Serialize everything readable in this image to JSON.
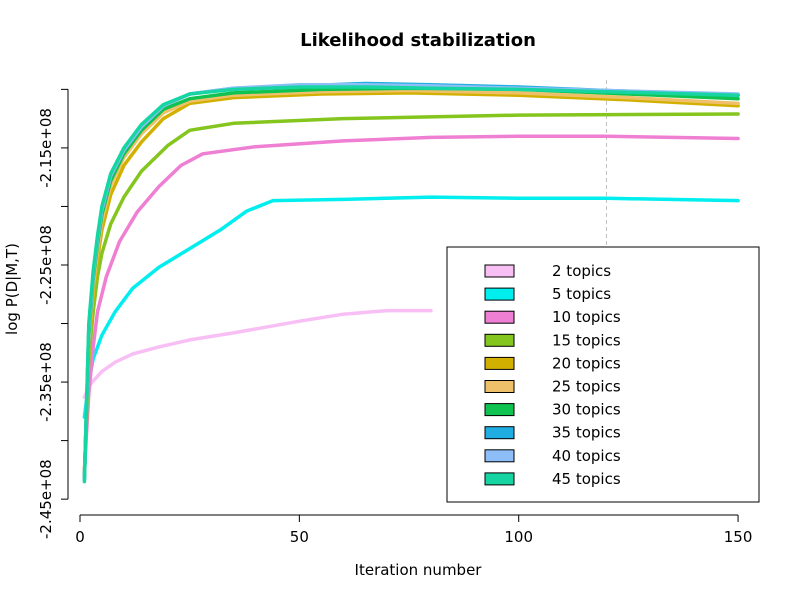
{
  "chart_data": {
    "type": "line",
    "title": "Likelihood stabilization",
    "xlabel": "Iteration number",
    "ylabel": "log P(D|M,T)",
    "xlim": [
      0,
      155
    ],
    "ylim": [
      -245500000.0,
      -209200000.0
    ],
    "x_ticks": [
      0,
      50,
      100,
      150
    ],
    "x_tick_labels": [
      "0",
      "50",
      "100",
      "150"
    ],
    "y_ticks": [
      -245000000.0,
      -240000000.0,
      -235000000.0,
      -230000000.0,
      -225000000.0,
      -220000000.0,
      -215000000.0,
      -210000000.0
    ],
    "y_tick_labels": [
      "-2.45e+08",
      "",
      "-2.35e+08",
      "",
      "-2.25e+08",
      "",
      "-2.15e+08",
      ""
    ],
    "vline": {
      "x": 120,
      "style": "dashed",
      "color": "#c0c0c0"
    },
    "legend_position": "bottom-right",
    "line_width": 3.5,
    "series": [
      {
        "name": "2 topics",
        "color": "#F8BFF5",
        "points": [
          [
            1,
            -236300000.0
          ],
          [
            2,
            -235400000.0
          ],
          [
            3,
            -234900000.0
          ],
          [
            5,
            -234100000.0
          ],
          [
            8,
            -233300000.0
          ],
          [
            12,
            -232600000.0
          ],
          [
            18,
            -232000000.0
          ],
          [
            25,
            -231400000.0
          ],
          [
            35,
            -230800000.0
          ],
          [
            50,
            -229800000.0
          ],
          [
            60,
            -229200000.0
          ],
          [
            70,
            -228900000.0
          ],
          [
            80,
            -228900000.0
          ]
        ]
      },
      {
        "name": "5 topics",
        "color": "#00EEEE",
        "points": [
          [
            1,
            -238000000.0
          ],
          [
            2,
            -235000000.0
          ],
          [
            3,
            -233000000.0
          ],
          [
            5,
            -231000000.0
          ],
          [
            8,
            -229000000.0
          ],
          [
            12,
            -227000000.0
          ],
          [
            18,
            -225200000.0
          ],
          [
            25,
            -223600000.0
          ],
          [
            32,
            -222000000.0
          ],
          [
            38,
            -220400000.0
          ],
          [
            44,
            -219500000.0
          ],
          [
            60,
            -219400000.0
          ],
          [
            80,
            -219200000.0
          ],
          [
            100,
            -219300000.0
          ],
          [
            120,
            -219300000.0
          ],
          [
            150,
            -219500000.0
          ]
        ]
      },
      {
        "name": "10 topics",
        "color": "#EE7FD3",
        "points": [
          [
            1,
            -242500000.0
          ],
          [
            2,
            -236000000.0
          ],
          [
            3,
            -232000000.0
          ],
          [
            4,
            -229000000.0
          ],
          [
            6,
            -226000000.0
          ],
          [
            9,
            -223000000.0
          ],
          [
            13,
            -220500000.0
          ],
          [
            18,
            -218300000.0
          ],
          [
            23,
            -216500000.0
          ],
          [
            28,
            -215500000.0
          ],
          [
            40,
            -214900000.0
          ],
          [
            60,
            -214400000.0
          ],
          [
            80,
            -214100000.0
          ],
          [
            100,
            -214000000.0
          ],
          [
            120,
            -214000000.0
          ],
          [
            150,
            -214200000.0
          ]
        ]
      },
      {
        "name": "15 topics",
        "color": "#84C51E",
        "points": [
          [
            1,
            -243000000.0
          ],
          [
            2,
            -233000000.0
          ],
          [
            3,
            -229000000.0
          ],
          [
            4,
            -226000000.0
          ],
          [
            5,
            -224000000.0
          ],
          [
            7,
            -221500000.0
          ],
          [
            10,
            -219200000.0
          ],
          [
            14,
            -217000000.0
          ],
          [
            20,
            -214800000.0
          ],
          [
            25,
            -213500000.0
          ],
          [
            35,
            -212900000.0
          ],
          [
            60,
            -212500000.0
          ],
          [
            100,
            -212200000.0
          ],
          [
            150,
            -212100000.0
          ]
        ]
      },
      {
        "name": "20 topics",
        "color": "#D2B000",
        "points": [
          [
            1,
            -243000000.0
          ],
          [
            2,
            -232000000.0
          ],
          [
            3,
            -227500000.0
          ],
          [
            4,
            -224500000.0
          ],
          [
            5,
            -222000000.0
          ],
          [
            7,
            -219000000.0
          ],
          [
            10,
            -216500000.0
          ],
          [
            14,
            -214500000.0
          ],
          [
            19,
            -212500000.0
          ],
          [
            25,
            -211200000.0
          ],
          [
            35,
            -210700000.0
          ],
          [
            55,
            -210400000.0
          ],
          [
            75,
            -210300000.0
          ],
          [
            100,
            -210500000.0
          ],
          [
            125,
            -210900000.0
          ],
          [
            150,
            -211400000.0
          ]
        ]
      },
      {
        "name": "25 topics",
        "color": "#EFC06A",
        "points": [
          [
            1,
            -243000000.0
          ],
          [
            2,
            -231500000.0
          ],
          [
            3,
            -226800000.0
          ],
          [
            4,
            -223800000.0
          ],
          [
            5,
            -221200000.0
          ],
          [
            7,
            -218200000.0
          ],
          [
            10,
            -215800000.0
          ],
          [
            14,
            -213800000.0
          ],
          [
            19,
            -212000000.0
          ],
          [
            25,
            -211000000.0
          ],
          [
            35,
            -210500000.0
          ],
          [
            55,
            -210200000.0
          ],
          [
            75,
            -210100000.0
          ],
          [
            100,
            -210300000.0
          ],
          [
            125,
            -210700000.0
          ],
          [
            150,
            -211200000.0
          ]
        ]
      },
      {
        "name": "30 topics",
        "color": "#10C350",
        "points": [
          [
            1,
            -243200000.0
          ],
          [
            2,
            -231000000.0
          ],
          [
            3,
            -226200000.0
          ],
          [
            4,
            -223200000.0
          ],
          [
            5,
            -220700000.0
          ],
          [
            7,
            -217800000.0
          ],
          [
            10,
            -215500000.0
          ],
          [
            14,
            -213500000.0
          ],
          [
            19,
            -211700000.0
          ],
          [
            25,
            -210800000.0
          ],
          [
            35,
            -210300000.0
          ],
          [
            55,
            -210000000.0
          ],
          [
            75,
            -209900000.0
          ],
          [
            100,
            -210000000.0
          ],
          [
            125,
            -210400000.0
          ],
          [
            150,
            -210800000.0
          ]
        ]
      },
      {
        "name": "35 topics",
        "color": "#20ADE1",
        "points": [
          [
            1,
            -243300000.0
          ],
          [
            2,
            -230500000.0
          ],
          [
            3,
            -225800000.0
          ],
          [
            4,
            -222800000.0
          ],
          [
            5,
            -220300000.0
          ],
          [
            7,
            -217400000.0
          ],
          [
            10,
            -215200000.0
          ],
          [
            14,
            -213200000.0
          ],
          [
            19,
            -211400000.0
          ],
          [
            25,
            -210400000.0
          ],
          [
            35,
            -209900000.0
          ],
          [
            50,
            -209700000.0
          ],
          [
            65,
            -209500000.0
          ],
          [
            80,
            -209600000.0
          ],
          [
            100,
            -209800000.0
          ],
          [
            120,
            -210100000.0
          ],
          [
            150,
            -210500000.0
          ]
        ]
      },
      {
        "name": "40 topics",
        "color": "#8DBEF7",
        "points": [
          [
            1,
            -243300000.0
          ],
          [
            2,
            -230500000.0
          ],
          [
            3,
            -225800000.0
          ],
          [
            4,
            -222800000.0
          ],
          [
            5,
            -220300000.0
          ],
          [
            7,
            -217400000.0
          ],
          [
            10,
            -215200000.0
          ],
          [
            14,
            -213200000.0
          ],
          [
            19,
            -211400000.0
          ],
          [
            25,
            -210400000.0
          ],
          [
            35,
            -209900000.0
          ],
          [
            50,
            -209600000.0
          ],
          [
            65,
            -209600000.0
          ],
          [
            80,
            -209700000.0
          ],
          [
            100,
            -209900000.0
          ],
          [
            120,
            -210100000.0
          ],
          [
            150,
            -210400000.0
          ]
        ]
      },
      {
        "name": "45 topics",
        "color": "#16D5A3",
        "points": [
          [
            1,
            -243500000.0
          ],
          [
            2,
            -230000000.0
          ],
          [
            3,
            -225500000.0
          ],
          [
            4,
            -222500000.0
          ],
          [
            5,
            -220000000.0
          ],
          [
            7,
            -217200000.0
          ],
          [
            10,
            -215000000.0
          ],
          [
            14,
            -213000000.0
          ],
          [
            19,
            -211300000.0
          ],
          [
            25,
            -210400000.0
          ],
          [
            35,
            -210000000.0
          ],
          [
            50,
            -209800000.0
          ],
          [
            65,
            -209800000.0
          ],
          [
            80,
            -209900000.0
          ],
          [
            100,
            -210000000.0
          ],
          [
            120,
            -210200000.0
          ],
          [
            150,
            -210500000.0
          ]
        ]
      }
    ]
  }
}
